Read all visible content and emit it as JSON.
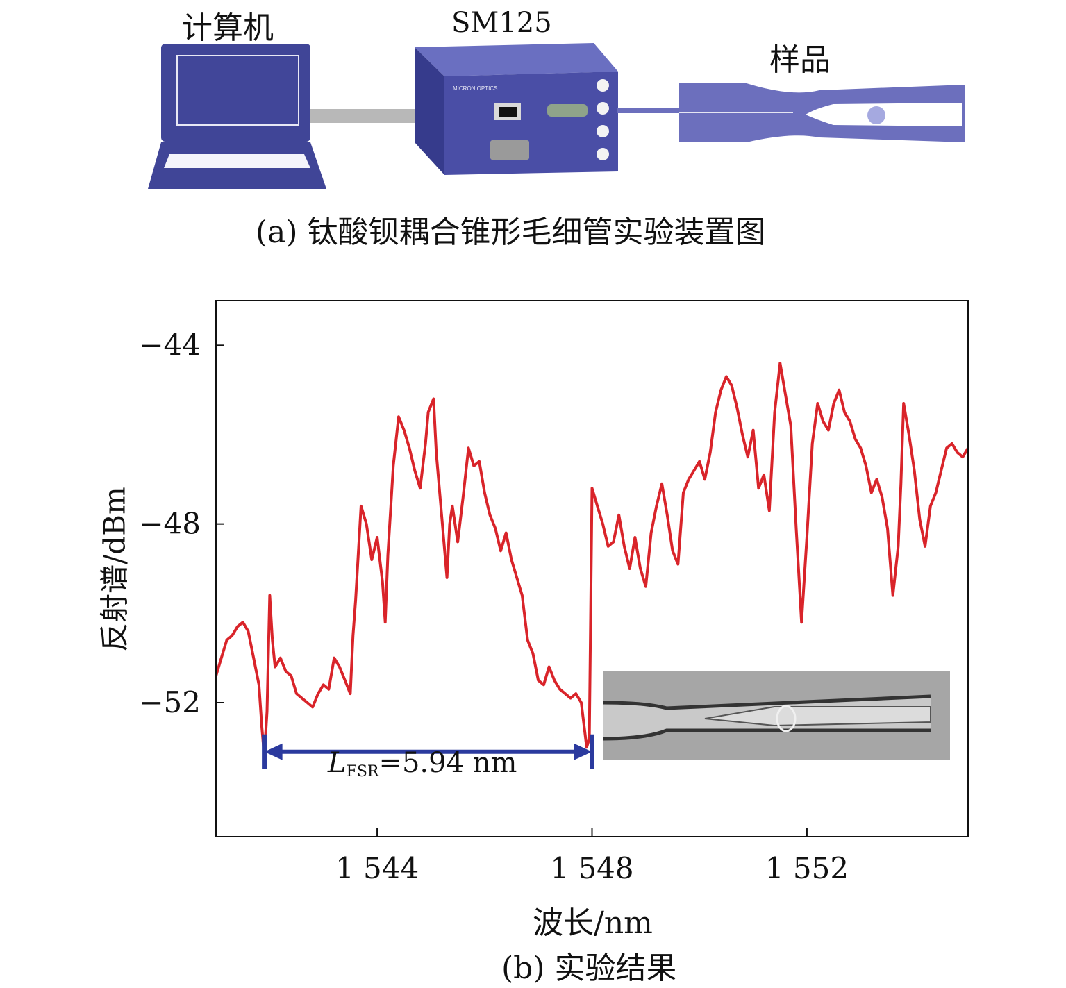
{
  "setup": {
    "computer_label": "计算机",
    "device_label": "SM125",
    "device_brand": "MICRON OPTICS",
    "sample_label": "样品",
    "caption": "(a) 钛酸钡耦合锥形毛细管实验装置图",
    "colors": {
      "device": "#4a4ea6",
      "cable": "#b8b8b8",
      "capillary": "#6c6fbd"
    }
  },
  "chart_data": {
    "type": "line",
    "ylabel": "反射谱/dBm",
    "xlabel": "波长/nm",
    "caption": "(b) 实验结果",
    "xlim": [
      1541,
      1555
    ],
    "ylim": [
      -55.0,
      -43.0
    ],
    "xticks": [
      1544,
      1548,
      1552
    ],
    "xtick_labels": [
      "1 544",
      "1 548",
      "1 552"
    ],
    "yticks": [
      -44,
      -48,
      -52
    ],
    "ytick_labels": [
      "−44",
      "−48",
      "−52"
    ],
    "line_color": "#d9242a",
    "annotation": {
      "symbol": "L",
      "subscript": "FSR",
      "value_text": "=5.94 nm",
      "x_start": 1541.9,
      "x_end": 1548.0,
      "y": -53.1,
      "color": "#2b3a9e"
    },
    "series": [
      {
        "values": [
          [
            1541.0,
            -51.4
          ],
          [
            1541.1,
            -51.0
          ],
          [
            1541.2,
            -50.6
          ],
          [
            1541.3,
            -50.5
          ],
          [
            1541.4,
            -50.3
          ],
          [
            1541.5,
            -50.2
          ],
          [
            1541.6,
            -50.4
          ],
          [
            1541.7,
            -51.0
          ],
          [
            1541.8,
            -51.6
          ],
          [
            1541.85,
            -52.5
          ],
          [
            1541.9,
            -53.2
          ],
          [
            1541.95,
            -52.2
          ],
          [
            1542.0,
            -49.6
          ],
          [
            1542.05,
            -50.6
          ],
          [
            1542.1,
            -51.2
          ],
          [
            1542.2,
            -51.0
          ],
          [
            1542.3,
            -51.3
          ],
          [
            1542.4,
            -51.4
          ],
          [
            1542.5,
            -51.8
          ],
          [
            1542.6,
            -51.9
          ],
          [
            1542.7,
            -52.0
          ],
          [
            1542.8,
            -52.1
          ],
          [
            1542.9,
            -51.8
          ],
          [
            1543.0,
            -51.6
          ],
          [
            1543.1,
            -51.7
          ],
          [
            1543.2,
            -51.0
          ],
          [
            1543.3,
            -51.2
          ],
          [
            1543.4,
            -51.5
          ],
          [
            1543.5,
            -51.8
          ],
          [
            1543.55,
            -50.5
          ],
          [
            1543.6,
            -49.7
          ],
          [
            1543.7,
            -47.6
          ],
          [
            1543.8,
            -48.0
          ],
          [
            1543.9,
            -48.8
          ],
          [
            1544.0,
            -48.3
          ],
          [
            1544.1,
            -49.3
          ],
          [
            1544.15,
            -50.2
          ],
          [
            1544.2,
            -48.7
          ],
          [
            1544.3,
            -46.7
          ],
          [
            1544.4,
            -45.6
          ],
          [
            1544.5,
            -45.9
          ],
          [
            1544.6,
            -46.3
          ],
          [
            1544.7,
            -46.8
          ],
          [
            1544.8,
            -47.2
          ],
          [
            1544.9,
            -46.2
          ],
          [
            1544.95,
            -45.5
          ],
          [
            1545.05,
            -45.2
          ],
          [
            1545.1,
            -46.4
          ],
          [
            1545.2,
            -47.8
          ],
          [
            1545.3,
            -49.2
          ],
          [
            1545.35,
            -48.0
          ],
          [
            1545.4,
            -47.6
          ],
          [
            1545.5,
            -48.4
          ],
          [
            1545.6,
            -47.4
          ],
          [
            1545.7,
            -46.3
          ],
          [
            1545.8,
            -46.7
          ],
          [
            1545.9,
            -46.6
          ],
          [
            1546.0,
            -47.3
          ],
          [
            1546.1,
            -47.8
          ],
          [
            1546.2,
            -48.1
          ],
          [
            1546.3,
            -48.6
          ],
          [
            1546.4,
            -48.2
          ],
          [
            1546.5,
            -48.8
          ],
          [
            1546.6,
            -49.2
          ],
          [
            1546.7,
            -49.6
          ],
          [
            1546.8,
            -50.6
          ],
          [
            1546.9,
            -50.9
          ],
          [
            1547.0,
            -51.5
          ],
          [
            1547.1,
            -51.6
          ],
          [
            1547.2,
            -51.2
          ],
          [
            1547.3,
            -51.5
          ],
          [
            1547.4,
            -51.7
          ],
          [
            1547.5,
            -51.8
          ],
          [
            1547.6,
            -51.9
          ],
          [
            1547.7,
            -51.8
          ],
          [
            1547.8,
            -52.0
          ],
          [
            1547.9,
            -53.0
          ],
          [
            1547.95,
            -52.8
          ],
          [
            1548.0,
            -47.2
          ],
          [
            1548.1,
            -47.6
          ],
          [
            1548.2,
            -48.0
          ],
          [
            1548.3,
            -48.5
          ],
          [
            1548.4,
            -48.4
          ],
          [
            1548.5,
            -47.8
          ],
          [
            1548.6,
            -48.5
          ],
          [
            1548.7,
            -49.0
          ],
          [
            1548.8,
            -48.3
          ],
          [
            1548.9,
            -49.0
          ],
          [
            1549.0,
            -49.4
          ],
          [
            1549.1,
            -48.2
          ],
          [
            1549.2,
            -47.6
          ],
          [
            1549.3,
            -47.1
          ],
          [
            1549.4,
            -47.8
          ],
          [
            1549.5,
            -48.6
          ],
          [
            1549.6,
            -48.9
          ],
          [
            1549.7,
            -47.3
          ],
          [
            1549.8,
            -47.0
          ],
          [
            1549.9,
            -46.8
          ],
          [
            1550.0,
            -46.6
          ],
          [
            1550.1,
            -47.0
          ],
          [
            1550.2,
            -46.4
          ],
          [
            1550.3,
            -45.5
          ],
          [
            1550.4,
            -45.0
          ],
          [
            1550.5,
            -44.7
          ],
          [
            1550.6,
            -44.9
          ],
          [
            1550.7,
            -45.4
          ],
          [
            1550.8,
            -46.0
          ],
          [
            1550.9,
            -46.5
          ],
          [
            1551.0,
            -45.9
          ],
          [
            1551.1,
            -47.2
          ],
          [
            1551.2,
            -46.9
          ],
          [
            1551.3,
            -47.7
          ],
          [
            1551.4,
            -45.5
          ],
          [
            1551.5,
            -44.4
          ],
          [
            1551.6,
            -45.1
          ],
          [
            1551.7,
            -45.8
          ],
          [
            1551.8,
            -48.1
          ],
          [
            1551.9,
            -50.2
          ],
          [
            1552.0,
            -48.3
          ],
          [
            1552.1,
            -46.2
          ],
          [
            1552.2,
            -45.3
          ],
          [
            1552.3,
            -45.7
          ],
          [
            1552.4,
            -45.9
          ],
          [
            1552.5,
            -45.3
          ],
          [
            1552.6,
            -45.0
          ],
          [
            1552.7,
            -45.5
          ],
          [
            1552.8,
            -45.7
          ],
          [
            1552.9,
            -46.1
          ],
          [
            1553.0,
            -46.3
          ],
          [
            1553.1,
            -46.7
          ],
          [
            1553.2,
            -47.3
          ],
          [
            1553.3,
            -47.0
          ],
          [
            1553.4,
            -47.4
          ],
          [
            1553.5,
            -48.1
          ],
          [
            1553.6,
            -49.6
          ],
          [
            1553.7,
            -48.5
          ],
          [
            1553.75,
            -47.1
          ],
          [
            1553.8,
            -45.3
          ],
          [
            1553.9,
            -46.0
          ],
          [
            1554.0,
            -46.8
          ],
          [
            1554.1,
            -47.9
          ],
          [
            1554.2,
            -48.5
          ],
          [
            1554.3,
            -47.6
          ],
          [
            1554.4,
            -47.3
          ],
          [
            1554.5,
            -46.8
          ],
          [
            1554.6,
            -46.3
          ],
          [
            1554.7,
            -46.2
          ],
          [
            1554.8,
            -46.4
          ],
          [
            1554.9,
            -46.5
          ],
          [
            1555.0,
            -46.3
          ]
        ]
      }
    ]
  }
}
